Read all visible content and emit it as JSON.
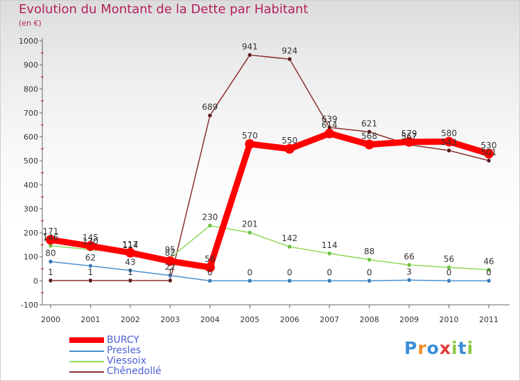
{
  "title": "Evolution du Montant de la Dette par Habitant",
  "subtitle": "(en €)",
  "logo": [
    "P",
    "r",
    "o",
    "x",
    "i",
    "t",
    "i"
  ],
  "logo_colors": [
    "#3b8ed8",
    "#f08a22",
    "#3b8ed8",
    "#e23b3b",
    "#8dc63f",
    "#3b8ed8",
    "#8dc63f"
  ],
  "chart_data": {
    "type": "line",
    "title": "Evolution du Montant de la Dette par Habitant",
    "ylabel": "(en €)",
    "xlabel": "",
    "x": [
      "2000",
      "2001",
      "2002",
      "2003",
      "2004",
      "2005",
      "2006",
      "2007",
      "2008",
      "2009",
      "2010",
      "2011"
    ],
    "ylim": [
      -100,
      1000
    ],
    "yticks": [
      -100,
      0,
      100,
      200,
      300,
      400,
      500,
      600,
      700,
      800,
      900,
      1000
    ],
    "grid": false,
    "legend_position": "bottom-left",
    "series": [
      {
        "name": "BURCY",
        "color": "#ff0000",
        "values": [
          171,
          145,
          117,
          82,
          56,
          570,
          550,
          614,
          568,
          579,
          580,
          530
        ]
      },
      {
        "name": "Presles",
        "color": "#4a90d0",
        "values": [
          80,
          62,
          43,
          22,
          0,
          0,
          0,
          0,
          0,
          3,
          0,
          0
        ]
      },
      {
        "name": "Viessoix",
        "color": "#8ed95a",
        "values": [
          146,
          130,
          114,
          95,
          230,
          201,
          142,
          114,
          88,
          66,
          56,
          46
        ]
      },
      {
        "name": "Chênedollé",
        "color": "#8b2f2f",
        "values": [
          1,
          1,
          1,
          1,
          689,
          941,
          924,
          639,
          621,
          567,
          543,
          501
        ]
      }
    ]
  }
}
